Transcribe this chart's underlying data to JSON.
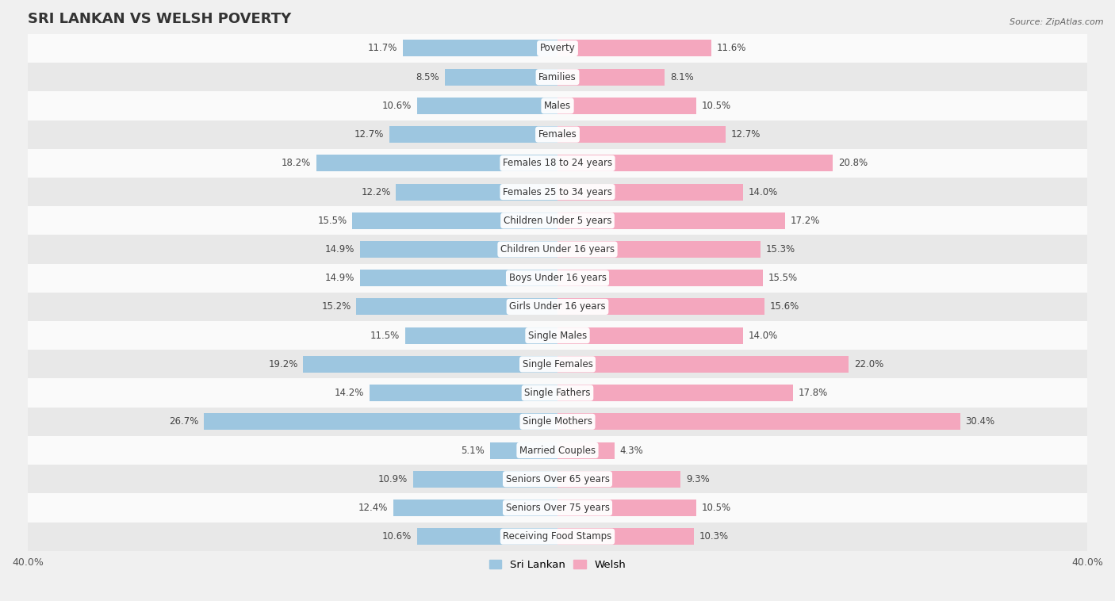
{
  "title": "SRI LANKAN VS WELSH POVERTY",
  "source": "Source: ZipAtlas.com",
  "categories": [
    "Poverty",
    "Families",
    "Males",
    "Females",
    "Females 18 to 24 years",
    "Females 25 to 34 years",
    "Children Under 5 years",
    "Children Under 16 years",
    "Boys Under 16 years",
    "Girls Under 16 years",
    "Single Males",
    "Single Females",
    "Single Fathers",
    "Single Mothers",
    "Married Couples",
    "Seniors Over 65 years",
    "Seniors Over 75 years",
    "Receiving Food Stamps"
  ],
  "sri_lankan": [
    11.7,
    8.5,
    10.6,
    12.7,
    18.2,
    12.2,
    15.5,
    14.9,
    14.9,
    15.2,
    11.5,
    19.2,
    14.2,
    26.7,
    5.1,
    10.9,
    12.4,
    10.6
  ],
  "welsh": [
    11.6,
    8.1,
    10.5,
    12.7,
    20.8,
    14.0,
    17.2,
    15.3,
    15.5,
    15.6,
    14.0,
    22.0,
    17.8,
    30.4,
    4.3,
    9.3,
    10.5,
    10.3
  ],
  "sri_lankan_color": "#9dc6e0",
  "welsh_color": "#f4a7be",
  "bar_height": 0.58,
  "xlim": 40.0,
  "bg_color": "#f0f0f0",
  "row_color_light": "#fafafa",
  "row_color_dark": "#e8e8e8",
  "title_fontsize": 13,
  "label_fontsize": 8.5,
  "legend_fontsize": 9.5,
  "axis_label_fontsize": 9,
  "value_fontsize": 8.5
}
